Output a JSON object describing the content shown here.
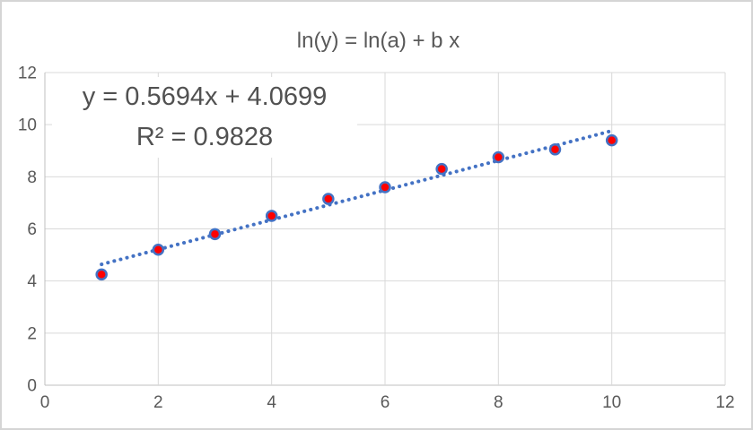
{
  "chart_data": {
    "type": "scatter",
    "title": "ln(y) = ln(a) + b x",
    "x": [
      1,
      2,
      3,
      4,
      5,
      6,
      7,
      8,
      9,
      10
    ],
    "y": [
      4.25,
      5.2,
      5.8,
      6.5,
      7.15,
      7.6,
      8.3,
      8.75,
      9.05,
      9.4
    ],
    "xlim": [
      0,
      12
    ],
    "ylim": [
      0,
      12
    ],
    "x_ticks": [
      0,
      2,
      4,
      6,
      8,
      10,
      12
    ],
    "y_ticks": [
      0,
      2,
      4,
      6,
      8,
      10,
      12
    ],
    "grid": true,
    "legend": "none",
    "xlabel": "",
    "ylabel": "",
    "trendline": {
      "style": "dotted",
      "slope": 0.5694,
      "intercept": 4.0699,
      "x_start": 1,
      "x_end": 10,
      "equation_label": "y = 0.5694x + 4.0699",
      "r_squared_label": "R² = 0.9828"
    },
    "colors": {
      "marker_fill": "#ff0000",
      "marker_stroke": "#4472c4",
      "trendline": "#4472c4",
      "gridline": "#d9d9d9",
      "axis_line": "#bfbfbf",
      "tick_text": "#595959",
      "title_text": "#595959",
      "equation_text": "#515151",
      "background": "#ffffff"
    }
  }
}
